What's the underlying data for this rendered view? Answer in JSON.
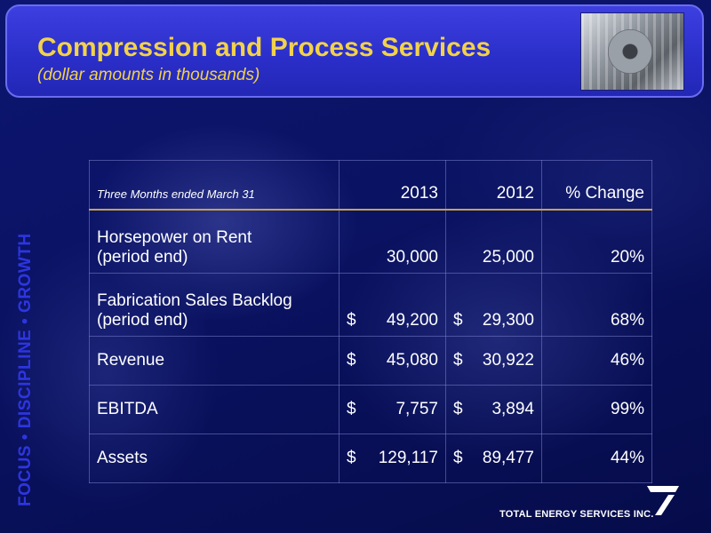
{
  "header": {
    "title": "Compression and Process Services",
    "subtitle": "(dollar amounts in thousands)"
  },
  "sidebar_text": "FOCUS • DISCIPLINE • GROWTH",
  "table": {
    "period_label": "Three Months ended March 31",
    "col_2013": "2013",
    "col_2012": "2012",
    "col_change": "% Change",
    "rows": [
      {
        "label_1": "Horsepower on Rent",
        "label_2": "(period end)",
        "v2013_sym": "",
        "v2013": "30,000",
        "v2012_sym": "",
        "v2012": "25,000",
        "change": "20%"
      },
      {
        "label_1": "Fabrication Sales Backlog",
        "label_2": "(period end)",
        "v2013_sym": "$",
        "v2013": "49,200",
        "v2012_sym": "$",
        "v2012": "29,300",
        "change": "68%"
      },
      {
        "label_1": "Revenue",
        "v2013_sym": "$",
        "v2013": "45,080",
        "v2012_sym": "$",
        "v2012": "30,922",
        "change": "46%"
      },
      {
        "label_1": "EBITDA",
        "v2013_sym": "$",
        "v2013": "7,757",
        "v2012_sym": "$",
        "v2012": "3,894",
        "change": "99%"
      },
      {
        "label_1": "Assets",
        "v2013_sym": "$",
        "v2013": "129,117",
        "v2012_sym": "$",
        "v2012": "89,477",
        "change": "44%"
      }
    ]
  },
  "footer": {
    "company": "TOTAL ENERGY SERVICES INC."
  },
  "colors": {
    "title": "#f2d24a",
    "side_text": "#2d35e0",
    "header_bg": "#2a2ec8"
  }
}
